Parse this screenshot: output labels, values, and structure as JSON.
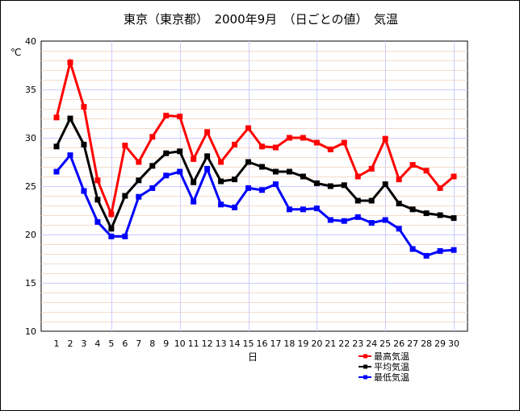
{
  "title": "東京（東京都）　2000年9月　（日ごとの値）　気温",
  "chart_data": {
    "type": "line",
    "ylabel": "℃",
    "xlabel": "日",
    "ylim": [
      10,
      40
    ],
    "yticks": [
      10,
      15,
      20,
      25,
      30,
      35,
      40
    ],
    "grid": true,
    "legend_position": "bottom-right",
    "x": [
      1,
      2,
      3,
      4,
      5,
      6,
      7,
      8,
      9,
      10,
      11,
      12,
      13,
      14,
      15,
      16,
      17,
      18,
      19,
      20,
      21,
      22,
      23,
      24,
      25,
      26,
      27,
      28,
      29,
      30
    ],
    "series": [
      {
        "name": "最高気温",
        "color": "#ff0000",
        "values": [
          32.1,
          37.8,
          33.2,
          25.6,
          22.1,
          29.2,
          27.5,
          30.1,
          32.3,
          32.2,
          27.8,
          30.6,
          27.5,
          29.3,
          31.0,
          29.1,
          29.0,
          30.0,
          30.0,
          29.5,
          28.8,
          29.5,
          26.0,
          26.8,
          29.9,
          25.7,
          27.2,
          26.6,
          24.8,
          26.0
        ]
      },
      {
        "name": "平均気温",
        "color": "#000000",
        "values": [
          29.1,
          32.0,
          29.3,
          23.6,
          20.6,
          24.0,
          25.6,
          27.1,
          28.4,
          28.6,
          25.4,
          28.1,
          25.5,
          25.7,
          27.5,
          27.0,
          26.5,
          26.5,
          26.0,
          25.3,
          25.0,
          25.1,
          23.5,
          23.5,
          25.2,
          23.2,
          22.6,
          22.2,
          22.0,
          21.7
        ]
      },
      {
        "name": "最低気温",
        "color": "#0000ff",
        "values": [
          26.5,
          28.2,
          24.5,
          21.3,
          19.8,
          19.8,
          23.9,
          24.8,
          26.1,
          26.5,
          23.4,
          26.8,
          23.1,
          22.8,
          24.8,
          24.6,
          25.2,
          22.6,
          22.6,
          22.7,
          21.5,
          21.4,
          21.8,
          21.2,
          21.5,
          20.6,
          18.5,
          17.8,
          18.3,
          18.4
        ]
      }
    ]
  }
}
